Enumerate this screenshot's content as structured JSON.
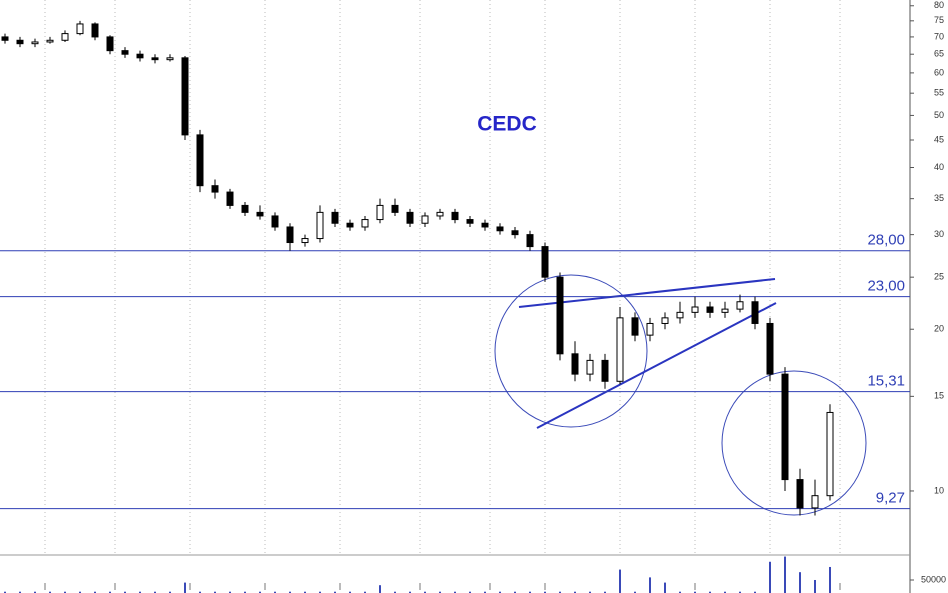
{
  "chart_data": {
    "type": "candlestick",
    "title": "CEDC",
    "log_scale": true,
    "ylim": [
      7.6,
      82
    ],
    "yticks": [
      80,
      75,
      70,
      65,
      60,
      55,
      50,
      45,
      40,
      35,
      30,
      25,
      20,
      15,
      10
    ],
    "up_color": "#ffffff",
    "down_color": "#000000",
    "level_color": "#2f3fb5",
    "levels": [
      {
        "value": 28,
        "label": "28,00"
      },
      {
        "value": 23,
        "label": "23,00"
      },
      {
        "value": 15.31,
        "label": "15,31"
      },
      {
        "value": 9.27,
        "label": "9,27"
      }
    ],
    "open": [
      70,
      69,
      68,
      68.5,
      69,
      71,
      74,
      70,
      66,
      65,
      64,
      63.5,
      64,
      46,
      37,
      36,
      34,
      33,
      32.5,
      31,
      29,
      29.5,
      33,
      31.5,
      31,
      32,
      34,
      33,
      31.5,
      32.5,
      33,
      32,
      31.5,
      31,
      30.5,
      30,
      28.5,
      25,
      18,
      16.5,
      17.5,
      16,
      21,
      19.5,
      20.5,
      21,
      21.5,
      22,
      21.5,
      21.8,
      22.5,
      20.5,
      16.5,
      10.5,
      9.3,
      9.8
    ],
    "high": [
      71,
      70,
      69.5,
      70,
      72,
      75,
      74.5,
      70.5,
      67,
      66,
      65,
      65,
      64.5,
      47,
      38,
      36.5,
      34.5,
      34,
      33,
      31.5,
      30,
      34,
      33.5,
      32,
      32.5,
      35,
      35,
      33.5,
      33,
      33.5,
      33.5,
      32.5,
      32,
      31.5,
      31,
      30.5,
      29,
      25.5,
      19,
      18,
      18,
      22,
      21.5,
      21,
      21.5,
      22.5,
      23,
      22.5,
      22.5,
      23.2,
      23,
      21,
      17,
      11,
      10.5,
      14.5
    ],
    "low": [
      68,
      67,
      67,
      68,
      68.5,
      70.5,
      69,
      65,
      64,
      63,
      62.5,
      63,
      45,
      36,
      35,
      33.5,
      32.5,
      32,
      30.5,
      28,
      28.5,
      29,
      31,
      30.5,
      30.5,
      31.5,
      32.5,
      31,
      31,
      32,
      31.5,
      31,
      30.5,
      30,
      29.5,
      28,
      24.5,
      17.5,
      16,
      16,
      15.5,
      15.8,
      19,
      19,
      20,
      20.5,
      21,
      21,
      21,
      21.5,
      20,
      16,
      10,
      9,
      9,
      9.6
    ],
    "close": [
      69,
      68,
      68.5,
      69,
      71,
      74,
      70,
      66,
      65,
      64,
      63.5,
      64,
      46,
      37,
      36,
      34,
      33,
      32.5,
      31,
      29,
      29.5,
      33,
      31.5,
      31,
      32,
      34,
      33,
      31.5,
      32.5,
      33,
      32,
      31.5,
      31,
      30.5,
      30,
      28.5,
      25,
      18,
      16.5,
      17.5,
      16,
      21,
      19.5,
      20.5,
      21,
      21.5,
      22,
      21.5,
      21.8,
      22.5,
      20.5,
      16.5,
      10.5,
      9.3,
      9.8,
      14
    ],
    "volume": [
      5000,
      5000,
      5000,
      5000,
      5000,
      5000,
      5000,
      5000,
      5000,
      5000,
      5000,
      5000,
      40000,
      5000,
      5000,
      5000,
      5000,
      5000,
      5000,
      5000,
      5000,
      5000,
      5000,
      5000,
      5000,
      30000,
      5000,
      5000,
      5000,
      5000,
      5000,
      5000,
      5000,
      5000,
      5000,
      5000,
      5000,
      5000,
      5000,
      5000,
      5000,
      90000,
      5000,
      60000,
      40000,
      5000,
      5000,
      5000,
      5000,
      5000,
      5000,
      120000,
      140000,
      80000,
      50000,
      100000
    ],
    "volume_ylim": [
      0,
      146000
    ],
    "volume_yticks": [
      50000
    ]
  }
}
